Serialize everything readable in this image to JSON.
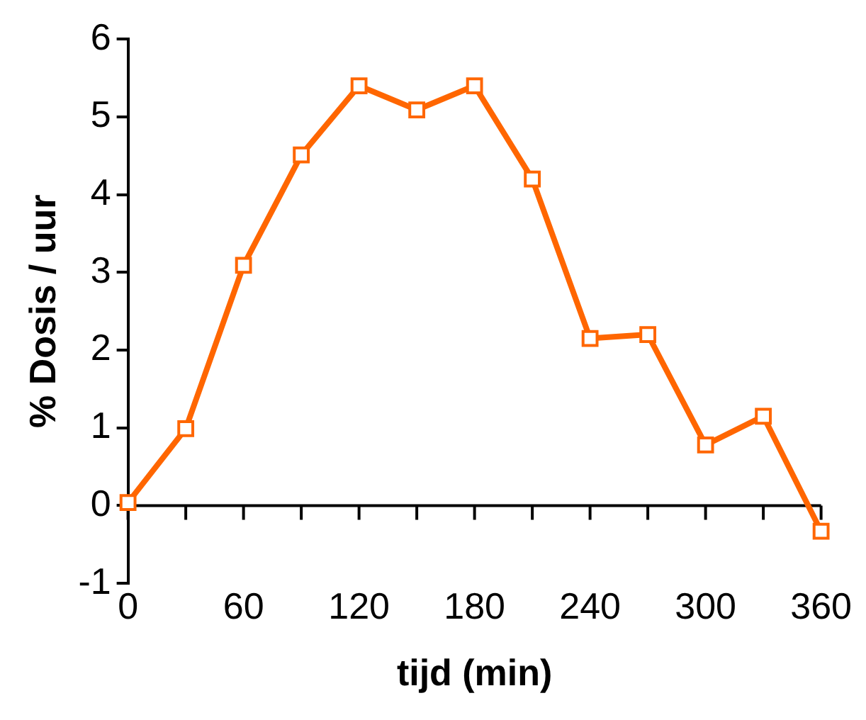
{
  "chart_data": {
    "type": "line",
    "xlabel": "tijd (min)",
    "ylabel": "% Dosis / uur",
    "x": [
      0,
      30,
      60,
      90,
      120,
      150,
      180,
      210,
      240,
      270,
      300,
      330,
      360
    ],
    "series": [
      {
        "color": "#ff6600",
        "values": [
          0.04,
          0.99,
          3.09,
          4.51,
          5.4,
          5.09,
          5.4,
          4.2,
          2.15,
          2.2,
          0.78,
          1.15,
          -0.33
        ]
      }
    ],
    "xlim": [
      0,
      360
    ],
    "xticks": [
      0,
      {
        "value": 30,
        "label": null
      },
      60,
      {
        "value": 90,
        "label": null
      },
      120,
      {
        "value": 150,
        "label": null
      },
      180,
      {
        "value": 210,
        "label": null
      },
      240,
      {
        "value": 270,
        "label": null
      },
      300,
      {
        "value": 330,
        "label": null
      },
      360
    ],
    "ylim": [
      -1,
      6
    ],
    "yticks": [
      -1,
      0,
      1,
      2,
      3,
      4,
      5,
      6
    ],
    "grid": false,
    "legend": false,
    "marker": "square",
    "line_style": "solid"
  }
}
